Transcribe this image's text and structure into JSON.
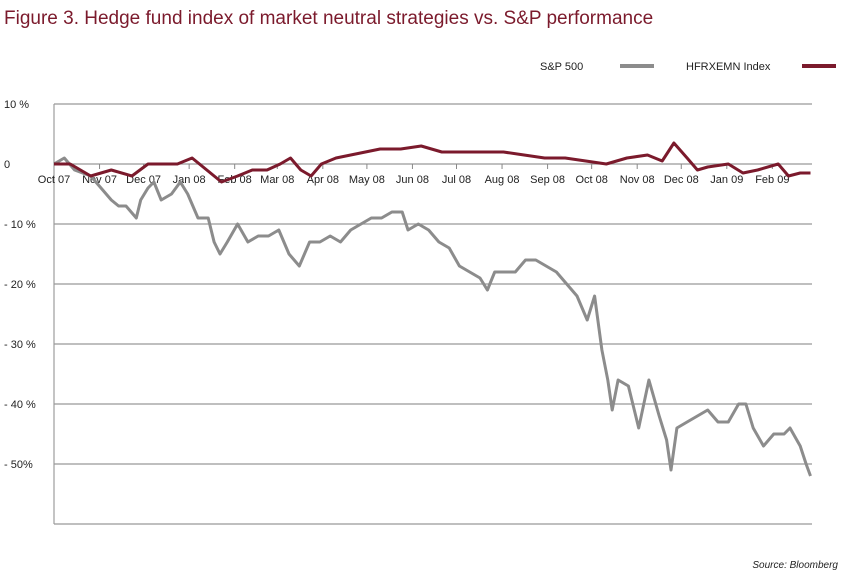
{
  "chart_data": {
    "type": "line",
    "title": "Figure 3. Hedge fund index of market neutral strategies vs. S&P performance",
    "source": "Source: Bloomberg",
    "x_range": [
      "2007-10-01",
      "2009-02-28"
    ],
    "ylim": [
      -60,
      10
    ],
    "grid": true,
    "legend_placement": "top-right",
    "y_ticks": [
      {
        "v": 10,
        "label": "10 %"
      },
      {
        "v": 0,
        "label": "0"
      },
      {
        "v": -10,
        "label": "- 10 %"
      },
      {
        "v": -20,
        "label": "- 20 %"
      },
      {
        "v": -30,
        "label": "- 30 %"
      },
      {
        "v": -40,
        "label": "- 40 %"
      },
      {
        "v": -50,
        "label": "- 50%"
      },
      {
        "v": -60,
        "label": ""
      }
    ],
    "x_ticks": [
      {
        "d": "2007-10-01",
        "label": "Oct 07"
      },
      {
        "d": "2007-11-01",
        "label": "Nov 07"
      },
      {
        "d": "2007-12-01",
        "label": "Dec 07"
      },
      {
        "d": "2008-01-01",
        "label": "Jan 08"
      },
      {
        "d": "2008-02-01",
        "label": "Feb 08"
      },
      {
        "d": "2008-03-01",
        "label": "Mar 08"
      },
      {
        "d": "2008-04-01",
        "label": "Apr 08"
      },
      {
        "d": "2008-05-01",
        "label": "May 08"
      },
      {
        "d": "2008-06-01",
        "label": "Jun 08"
      },
      {
        "d": "2008-07-01",
        "label": "Jul 08"
      },
      {
        "d": "2008-08-01",
        "label": "Aug 08"
      },
      {
        "d": "2008-09-01",
        "label": "Sep 08"
      },
      {
        "d": "2008-10-01",
        "label": "Oct 08"
      },
      {
        "d": "2008-11-01",
        "label": "Nov 08"
      },
      {
        "d": "2008-12-01",
        "label": "Dec 08"
      },
      {
        "d": "2009-01-01",
        "label": "Jan 09"
      },
      {
        "d": "2009-02-01",
        "label": "Feb 09"
      }
    ],
    "series": [
      {
        "name": "S&P 500",
        "color": "#8c8c8c",
        "points": [
          [
            "2007-10-01",
            0
          ],
          [
            "2007-10-08",
            1
          ],
          [
            "2007-10-15",
            -1
          ],
          [
            "2007-10-26",
            -2
          ],
          [
            "2007-11-02",
            -4
          ],
          [
            "2007-11-09",
            -6
          ],
          [
            "2007-11-14",
            -7
          ],
          [
            "2007-11-19",
            -7
          ],
          [
            "2007-11-26",
            -9
          ],
          [
            "2007-11-29",
            -6
          ],
          [
            "2007-12-04",
            -4
          ],
          [
            "2007-12-08",
            -3
          ],
          [
            "2007-12-13",
            -6
          ],
          [
            "2007-12-20",
            -5
          ],
          [
            "2007-12-26",
            -3
          ],
          [
            "2007-12-31",
            -5
          ],
          [
            "2008-01-07",
            -9
          ],
          [
            "2008-01-14",
            -9
          ],
          [
            "2008-01-18",
            -13
          ],
          [
            "2008-01-22",
            -15
          ],
          [
            "2008-01-27",
            -13
          ],
          [
            "2008-02-03",
            -10
          ],
          [
            "2008-02-10",
            -13
          ],
          [
            "2008-02-17",
            -12
          ],
          [
            "2008-02-24",
            -12
          ],
          [
            "2008-03-02",
            -11
          ],
          [
            "2008-03-09",
            -15
          ],
          [
            "2008-03-16",
            -17
          ],
          [
            "2008-03-23",
            -13
          ],
          [
            "2008-03-30",
            -13
          ],
          [
            "2008-04-06",
            -12
          ],
          [
            "2008-04-13",
            -13
          ],
          [
            "2008-04-20",
            -11
          ],
          [
            "2008-04-27",
            -10
          ],
          [
            "2008-05-04",
            -9
          ],
          [
            "2008-05-11",
            -9
          ],
          [
            "2008-05-18",
            -8
          ],
          [
            "2008-05-25",
            -8
          ],
          [
            "2008-05-29",
            -11
          ],
          [
            "2008-06-05",
            -10
          ],
          [
            "2008-06-12",
            -11
          ],
          [
            "2008-06-19",
            -13
          ],
          [
            "2008-06-26",
            -14
          ],
          [
            "2008-07-03",
            -17
          ],
          [
            "2008-07-10",
            -18
          ],
          [
            "2008-07-17",
            -19
          ],
          [
            "2008-07-22",
            -21
          ],
          [
            "2008-07-27",
            -18
          ],
          [
            "2008-08-03",
            -18
          ],
          [
            "2008-08-10",
            -18
          ],
          [
            "2008-08-17",
            -16
          ],
          [
            "2008-08-24",
            -16
          ],
          [
            "2008-08-31",
            -17
          ],
          [
            "2008-09-07",
            -18
          ],
          [
            "2008-09-14",
            -20
          ],
          [
            "2008-09-21",
            -22
          ],
          [
            "2008-09-28",
            -26
          ],
          [
            "2008-10-03",
            -22
          ],
          [
            "2008-10-08",
            -31
          ],
          [
            "2008-10-12",
            -36
          ],
          [
            "2008-10-15",
            -41
          ],
          [
            "2008-10-19",
            -36
          ],
          [
            "2008-10-26",
            -37
          ],
          [
            "2008-11-02",
            -44
          ],
          [
            "2008-11-09",
            -36
          ],
          [
            "2008-11-16",
            -42
          ],
          [
            "2008-11-21",
            -46
          ],
          [
            "2008-11-24",
            -51
          ],
          [
            "2008-11-28",
            -44
          ],
          [
            "2008-12-05",
            -43
          ],
          [
            "2008-12-12",
            -42
          ],
          [
            "2008-12-19",
            -41
          ],
          [
            "2008-12-26",
            -43
          ],
          [
            "2009-01-02",
            -43
          ],
          [
            "2009-01-09",
            -40
          ],
          [
            "2009-01-14",
            -40
          ],
          [
            "2009-01-19",
            -44
          ],
          [
            "2009-01-26",
            -47
          ],
          [
            "2009-02-02",
            -45
          ],
          [
            "2009-02-09",
            -45
          ],
          [
            "2009-02-13",
            -44
          ],
          [
            "2009-02-20",
            -47
          ],
          [
            "2009-02-24",
            -50
          ],
          [
            "2009-02-27",
            -52
          ]
        ]
      },
      {
        "name": "HFRXEMN Index",
        "color": "#7b1a2c",
        "points": [
          [
            "2007-10-01",
            0
          ],
          [
            "2007-10-12",
            0
          ],
          [
            "2007-10-26",
            -2
          ],
          [
            "2007-11-09",
            -1
          ],
          [
            "2007-11-23",
            -2
          ],
          [
            "2007-12-04",
            0
          ],
          [
            "2007-12-14",
            0
          ],
          [
            "2007-12-24",
            0
          ],
          [
            "2008-01-03",
            1
          ],
          [
            "2008-01-13",
            -1
          ],
          [
            "2008-01-23",
            -3
          ],
          [
            "2008-02-03",
            -2
          ],
          [
            "2008-02-13",
            -1
          ],
          [
            "2008-02-23",
            -1
          ],
          [
            "2008-03-03",
            0
          ],
          [
            "2008-03-10",
            1
          ],
          [
            "2008-03-17",
            -1
          ],
          [
            "2008-03-24",
            -2
          ],
          [
            "2008-03-31",
            0
          ],
          [
            "2008-04-10",
            1
          ],
          [
            "2008-04-20",
            1.5
          ],
          [
            "2008-04-30",
            2
          ],
          [
            "2008-05-10",
            2.5
          ],
          [
            "2008-05-24",
            2.5
          ],
          [
            "2008-06-07",
            3
          ],
          [
            "2008-06-21",
            2
          ],
          [
            "2008-07-05",
            2
          ],
          [
            "2008-07-19",
            2
          ],
          [
            "2008-08-02",
            2
          ],
          [
            "2008-08-16",
            1.5
          ],
          [
            "2008-08-30",
            1
          ],
          [
            "2008-09-13",
            1
          ],
          [
            "2008-09-27",
            0.5
          ],
          [
            "2008-10-11",
            0
          ],
          [
            "2008-10-25",
            1
          ],
          [
            "2008-11-08",
            1.5
          ],
          [
            "2008-11-18",
            0.5
          ],
          [
            "2008-11-26",
            3.5
          ],
          [
            "2008-12-05",
            1
          ],
          [
            "2008-12-12",
            -1
          ],
          [
            "2008-12-19",
            -0.5
          ],
          [
            "2009-01-02",
            0
          ],
          [
            "2009-01-12",
            -1.5
          ],
          [
            "2009-01-22",
            -1
          ],
          [
            "2009-02-05",
            0
          ],
          [
            "2009-02-12",
            -2
          ],
          [
            "2009-02-20",
            -1.5
          ],
          [
            "2009-02-27",
            -1.5
          ]
        ]
      }
    ]
  }
}
